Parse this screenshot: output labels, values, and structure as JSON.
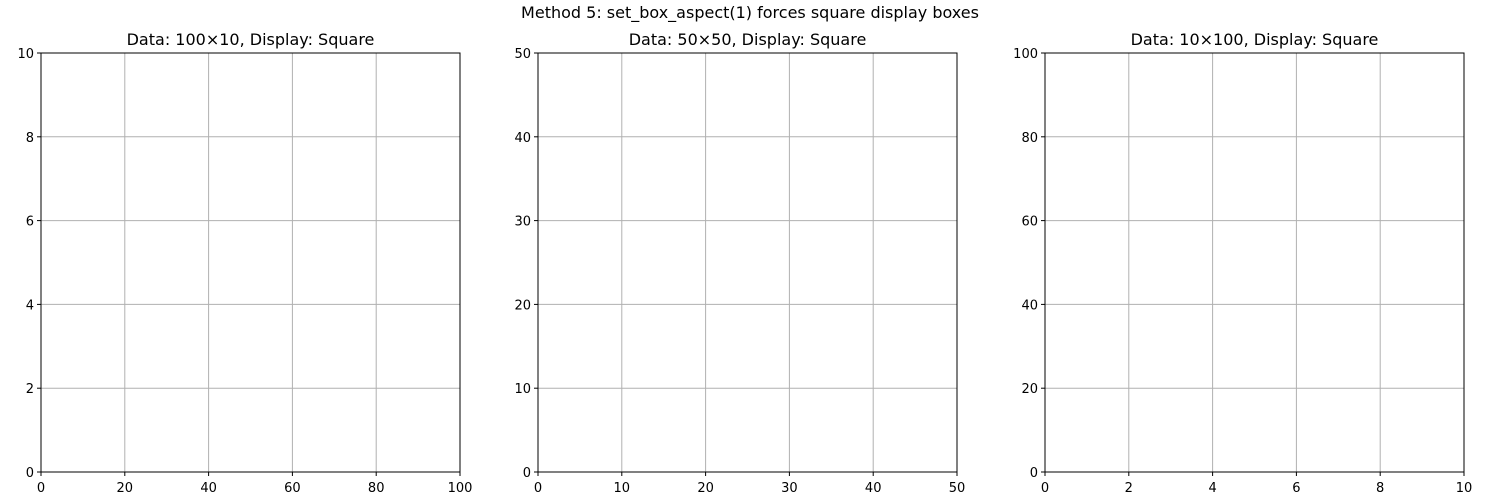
{
  "figure": {
    "suptitle": "Method 5: set_box_aspect(1) forces square display boxes"
  },
  "chart_data": [
    {
      "type": "line",
      "title": "Data: 100×10, Display: Square",
      "xlim": [
        0,
        100
      ],
      "ylim": [
        0,
        10
      ],
      "xticks": [
        0,
        20,
        40,
        60,
        80,
        100
      ],
      "yticks": [
        0,
        2,
        4,
        6,
        8,
        10
      ],
      "grid": true,
      "series": []
    },
    {
      "type": "line",
      "title": "Data: 50×50, Display: Square",
      "xlim": [
        0,
        50
      ],
      "ylim": [
        0,
        50
      ],
      "xticks": [
        0,
        10,
        20,
        30,
        40,
        50
      ],
      "yticks": [
        0,
        10,
        20,
        30,
        40,
        50
      ],
      "grid": true,
      "series": []
    },
    {
      "type": "line",
      "title": "Data: 10×100, Display: Square",
      "xlim": [
        0,
        10
      ],
      "ylim": [
        0,
        100
      ],
      "xticks": [
        0,
        2,
        4,
        6,
        8,
        10
      ],
      "yticks": [
        0,
        20,
        40,
        60,
        80,
        100
      ],
      "grid": true,
      "series": []
    }
  ]
}
